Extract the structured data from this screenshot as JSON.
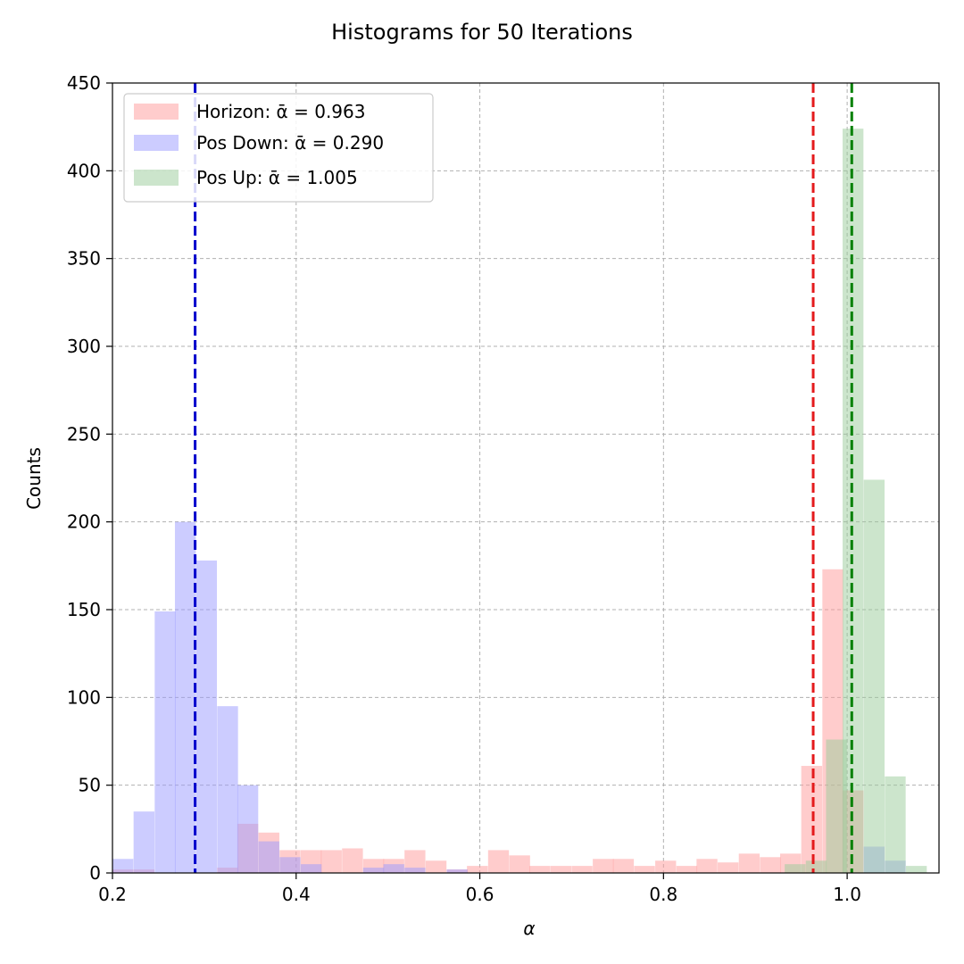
{
  "chart_data": {
    "type": "bar",
    "title": "Histograms for 50 Iterations",
    "xlabel": "α",
    "ylabel": "Counts",
    "xlim": [
      0.2,
      1.1
    ],
    "ylim": [
      0,
      450
    ],
    "xticks": [
      0.2,
      0.4,
      0.6,
      0.8,
      1.0
    ],
    "xtick_labels": [
      "0.2",
      "0.4",
      "0.6",
      "0.8",
      "1.0"
    ],
    "yticks": [
      0,
      50,
      100,
      150,
      200,
      250,
      300,
      350,
      400,
      450
    ],
    "ytick_labels": [
      "0",
      "50",
      "100",
      "150",
      "200",
      "250",
      "300",
      "350",
      "400",
      "450"
    ],
    "grid": true,
    "legend_position": "top-left",
    "series": [
      {
        "name": "Horizon: ᾱ = 0.963",
        "color": "#ff9999",
        "mean": 0.963,
        "mean_color": "#e41a1c",
        "bin_width": 0.0227,
        "bins": [
          [
            0.2,
            2
          ],
          [
            0.223,
            2
          ],
          [
            0.246,
            0
          ],
          [
            0.268,
            0
          ],
          [
            0.291,
            0
          ],
          [
            0.314,
            3
          ],
          [
            0.336,
            28
          ],
          [
            0.359,
            23
          ],
          [
            0.382,
            13
          ],
          [
            0.405,
            13
          ],
          [
            0.427,
            13
          ],
          [
            0.45,
            14
          ],
          [
            0.473,
            8
          ],
          [
            0.495,
            8
          ],
          [
            0.518,
            13
          ],
          [
            0.541,
            7
          ],
          [
            0.564,
            2
          ],
          [
            0.586,
            4
          ],
          [
            0.609,
            13
          ],
          [
            0.632,
            10
          ],
          [
            0.654,
            4
          ],
          [
            0.677,
            4
          ],
          [
            0.7,
            4
          ],
          [
            0.723,
            8
          ],
          [
            0.745,
            8
          ],
          [
            0.768,
            4
          ],
          [
            0.791,
            7
          ],
          [
            0.814,
            4
          ],
          [
            0.836,
            8
          ],
          [
            0.859,
            6
          ],
          [
            0.882,
            11
          ],
          [
            0.905,
            9
          ],
          [
            0.927,
            11
          ],
          [
            0.95,
            61
          ],
          [
            0.973,
            173
          ],
          [
            0.995,
            47
          ]
        ]
      },
      {
        "name": "Pos Down: ᾱ = 0.290",
        "color": "#9999ff",
        "mean": 0.29,
        "mean_color": "#0000cc",
        "bin_width": 0.0227,
        "bins": [
          [
            0.2,
            8
          ],
          [
            0.223,
            35
          ],
          [
            0.246,
            149
          ],
          [
            0.268,
            200
          ],
          [
            0.291,
            178
          ],
          [
            0.314,
            95
          ],
          [
            0.336,
            50
          ],
          [
            0.359,
            18
          ],
          [
            0.382,
            9
          ],
          [
            0.405,
            5
          ],
          [
            0.427,
            0
          ],
          [
            0.45,
            0
          ],
          [
            0.473,
            3
          ],
          [
            0.495,
            5
          ],
          [
            0.518,
            3
          ],
          [
            0.541,
            0
          ],
          [
            0.564,
            2
          ],
          [
            0.586,
            0
          ],
          [
            0.609,
            0
          ],
          [
            0.632,
            0
          ],
          [
            0.654,
            0
          ],
          [
            0.677,
            0
          ],
          [
            0.7,
            0
          ],
          [
            0.723,
            0
          ],
          [
            0.745,
            0
          ],
          [
            0.768,
            0
          ],
          [
            0.791,
            0
          ],
          [
            0.814,
            0
          ],
          [
            0.836,
            0
          ],
          [
            0.859,
            0
          ],
          [
            0.882,
            0
          ],
          [
            0.905,
            0
          ],
          [
            0.927,
            0
          ],
          [
            0.95,
            0
          ],
          [
            0.973,
            0
          ],
          [
            0.995,
            0
          ],
          [
            1.018,
            15
          ],
          [
            1.041,
            7
          ]
        ]
      },
      {
        "name": "Pos Up: ᾱ = 1.005",
        "color": "#99cc99",
        "mean": 1.005,
        "mean_color": "#008000",
        "bin_width": 0.0227,
        "bins": [
          [
            0.886,
            0
          ],
          [
            0.909,
            0
          ],
          [
            0.932,
            5
          ],
          [
            0.955,
            7
          ],
          [
            0.977,
            76
          ],
          [
            0.995,
            424
          ],
          [
            1.018,
            224
          ],
          [
            1.041,
            55
          ],
          [
            1.064,
            4
          ]
        ]
      }
    ]
  }
}
